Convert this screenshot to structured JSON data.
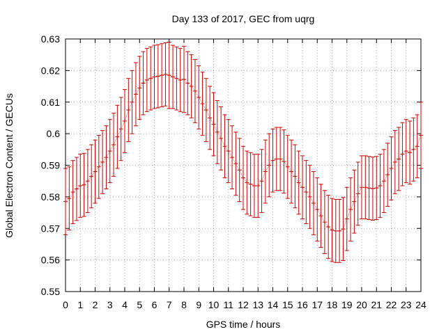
{
  "chart_data": {
    "type": "line",
    "title": "Day 133 of 2017, GEC from uqrg",
    "xlabel": "GPS time / hours",
    "ylabel": "Global Electron Content / GECUs",
    "xlim": [
      0,
      24
    ],
    "ylim": [
      0.55,
      0.63
    ],
    "xticks": [
      0,
      1,
      2,
      3,
      4,
      5,
      6,
      7,
      8,
      9,
      10,
      11,
      12,
      13,
      14,
      15,
      16,
      17,
      18,
      19,
      20,
      21,
      22,
      23,
      24
    ],
    "yticks": [
      0.55,
      0.56,
      0.57,
      0.58,
      0.59,
      0.6,
      0.61,
      0.62,
      0.63
    ],
    "ytick_labels": [
      "0.55",
      "0.56",
      "0.57",
      "0.58",
      "0.59",
      "0.6",
      "0.61",
      "0.62",
      "0.63"
    ],
    "grid": true,
    "error_bars": true,
    "series_color": "#cc0000",
    "series": [
      {
        "x": [
          0,
          0.25,
          0.5,
          0.75,
          1,
          1.25,
          1.5,
          1.75,
          2,
          2.25,
          2.5,
          2.75,
          3,
          3.25,
          3.5,
          3.75,
          4,
          4.25,
          4.5,
          4.75,
          5,
          5.25,
          5.5,
          5.75,
          6,
          6.25,
          6.5,
          6.75,
          7,
          7.25,
          7.5,
          7.75,
          8,
          8.25,
          8.5,
          8.75,
          9,
          9.25,
          9.5,
          9.75,
          10,
          10.25,
          10.5,
          10.75,
          11,
          11.25,
          11.5,
          11.75,
          12,
          12.25,
          12.5,
          12.75,
          13,
          13.25,
          13.5,
          13.75,
          14,
          14.25,
          14.5,
          14.75,
          15,
          15.25,
          15.5,
          15.75,
          16,
          16.25,
          16.5,
          16.75,
          17,
          17.25,
          17.5,
          17.75,
          18,
          18.25,
          18.5,
          18.75,
          19,
          19.25,
          19.5,
          19.75,
          20,
          20.25,
          20.5,
          20.75,
          21,
          21.25,
          21.5,
          21.75,
          22,
          22.25,
          22.5,
          22.75,
          23,
          23.25,
          23.5,
          23.75,
          24
        ],
        "y": [
          0.5785,
          0.5795,
          0.5815,
          0.5825,
          0.5835,
          0.5838,
          0.585,
          0.5865,
          0.588,
          0.5895,
          0.591,
          0.5925,
          0.5945,
          0.5965,
          0.599,
          0.6015,
          0.604,
          0.6075,
          0.61,
          0.6125,
          0.6145,
          0.616,
          0.617,
          0.6175,
          0.618,
          0.6182,
          0.6185,
          0.6188,
          0.6185,
          0.618,
          0.6175,
          0.617,
          0.6172,
          0.616,
          0.615,
          0.6135,
          0.6115,
          0.6095,
          0.6075,
          0.605,
          0.603,
          0.6005,
          0.5985,
          0.596,
          0.5945,
          0.5925,
          0.5905,
          0.5885,
          0.586,
          0.5845,
          0.584,
          0.5835,
          0.5835,
          0.585,
          0.588,
          0.59,
          0.5915,
          0.592,
          0.592,
          0.5912,
          0.5895,
          0.588,
          0.5865,
          0.5845,
          0.583,
          0.5815,
          0.58,
          0.578,
          0.576,
          0.574,
          0.572,
          0.5705,
          0.5695,
          0.5692,
          0.5692,
          0.5698,
          0.573,
          0.576,
          0.5785,
          0.581,
          0.583,
          0.583,
          0.5828,
          0.5826,
          0.5828,
          0.5835,
          0.585,
          0.587,
          0.589,
          0.591,
          0.592,
          0.5935,
          0.5945,
          0.594,
          0.595,
          0.596,
          0.5995
        ],
        "error": [
          0.0105,
          0.01,
          0.01,
          0.01,
          0.01,
          0.01,
          0.01,
          0.01,
          0.01,
          0.01,
          0.01,
          0.01,
          0.01,
          0.01,
          0.01,
          0.01,
          0.01,
          0.01,
          0.01,
          0.01,
          0.01,
          0.01,
          0.01,
          0.01,
          0.01,
          0.01,
          0.01,
          0.01,
          0.0105,
          0.01,
          0.01,
          0.01,
          0.0105,
          0.01,
          0.01,
          0.01,
          0.01,
          0.01,
          0.01,
          0.01,
          0.01,
          0.01,
          0.01,
          0.01,
          0.01,
          0.01,
          0.01,
          0.01,
          0.01,
          0.01,
          0.01,
          0.01,
          0.01,
          0.01,
          0.01,
          0.01,
          0.01,
          0.01,
          0.01,
          0.01,
          0.01,
          0.01,
          0.01,
          0.01,
          0.01,
          0.01,
          0.01,
          0.01,
          0.01,
          0.01,
          0.01,
          0.01,
          0.01,
          0.01,
          0.01,
          0.01,
          0.01,
          0.01,
          0.01,
          0.01,
          0.01,
          0.01,
          0.01,
          0.01,
          0.01,
          0.01,
          0.01,
          0.01,
          0.01,
          0.01,
          0.01,
          0.01,
          0.01,
          0.01,
          0.01,
          0.01,
          0.0105
        ]
      }
    ]
  }
}
